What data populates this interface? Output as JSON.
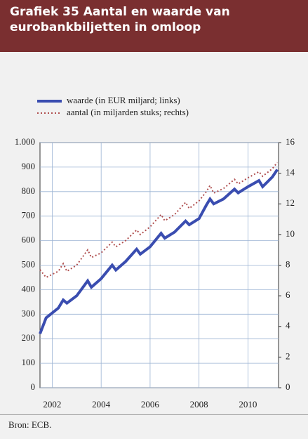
{
  "chart_data": {
    "type": "line",
    "title": "Grafiek 35 Aantal en waarde van eurobankbiljetten in omloop",
    "source": "Bron: ECB.",
    "x": [
      2002.0,
      2002.25,
      2002.5,
      2002.75,
      2002.95,
      2003.1,
      2003.5,
      2003.95,
      2004.1,
      2004.5,
      2004.95,
      2005.1,
      2005.5,
      2005.95,
      2006.1,
      2006.5,
      2006.95,
      2007.1,
      2007.5,
      2007.95,
      2008.1,
      2008.5,
      2008.8,
      2008.95,
      2009.1,
      2009.5,
      2009.95,
      2010.1,
      2010.5,
      2010.95,
      2011.1,
      2011.5,
      2011.7
    ],
    "series": [
      {
        "name": "waarde (in EUR miljard; links)",
        "color": "#3a4db0",
        "axis": "y",
        "values": [
          220,
          285,
          305,
          325,
          358,
          345,
          375,
          436,
          410,
          445,
          500,
          480,
          515,
          565,
          545,
          575,
          630,
          610,
          635,
          680,
          665,
          690,
          745,
          770,
          750,
          770,
          810,
          795,
          820,
          845,
          820,
          860,
          890
        ]
      },
      {
        "name": "aantal (in miljarden stuks; rechts)",
        "color": "#b05050",
        "axis": "y2",
        "values": [
          7.7,
          7.2,
          7.4,
          7.6,
          8.1,
          7.6,
          8.0,
          9.0,
          8.5,
          8.8,
          9.5,
          9.2,
          9.6,
          10.3,
          10.0,
          10.5,
          11.3,
          10.9,
          11.3,
          12.1,
          11.7,
          12.2,
          12.8,
          13.2,
          12.7,
          13.0,
          13.6,
          13.3,
          13.7,
          14.1,
          13.8,
          14.3,
          14.7
        ]
      }
    ],
    "xlim": [
      2002,
      2011.75
    ],
    "xticks": [
      {
        "value": 2002.5,
        "label": "2002"
      },
      {
        "value": 2004.5,
        "label": "2004"
      },
      {
        "value": 2006.5,
        "label": "2006"
      },
      {
        "value": 2008.5,
        "label": "2008"
      },
      {
        "value": 2010.5,
        "label": "2010"
      }
    ],
    "ylim": [
      0,
      1000
    ],
    "yticks": [
      0,
      100,
      200,
      300,
      400,
      500,
      600,
      700,
      800,
      900,
      {
        "value": 1000,
        "label": "1.000"
      }
    ],
    "y2lim": [
      0,
      16
    ],
    "y2ticks": [
      0,
      2,
      4,
      6,
      8,
      10,
      12,
      14,
      16
    ],
    "grid": true
  }
}
